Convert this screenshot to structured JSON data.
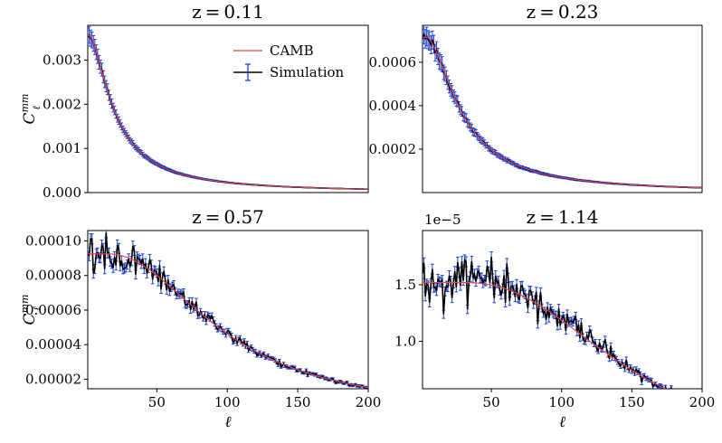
{
  "chart_data": {
    "type": "line",
    "xlabel": "ℓ",
    "ylabel": "Cℓmm",
    "ylabel_main": "C",
    "ylabel_sup": "mm",
    "ylabel_sub": "ℓ",
    "legend": {
      "placement": "upper-right of first panel",
      "entries": [
        {
          "label": "CAMB",
          "color": "#e8464f",
          "style": "line"
        },
        {
          "label": "Simulation",
          "color": "#000000",
          "err_color": "#1f3fd6",
          "style": "errorbar"
        }
      ]
    },
    "colors": {
      "camb": "#e8464f",
      "sim": "#000000",
      "errbar": "#1f3fd6"
    },
    "panels": [
      {
        "title": "z = 0.11",
        "z": 0.11,
        "xlim": [
          1,
          200
        ],
        "ylim": [
          0,
          0.00379
        ],
        "xticks": [],
        "yticks": [
          0,
          0.001,
          0.002,
          0.003
        ],
        "ytick_labels": [
          "0.000",
          "0.001",
          "0.002",
          "0.003"
        ],
        "offset_text": "",
        "camb_model": {
          "A": 0.00356,
          "x0": 2,
          "w": 19,
          "m": 1.05
        },
        "noise_amp": 0.006,
        "err_frac": 0.035,
        "seed": 11
      },
      {
        "title": "z = 0.23",
        "z": 0.23,
        "xlim": [
          1,
          200
        ],
        "ylim": [
          0,
          0.00077
        ],
        "xticks": [],
        "yticks": [
          0.0002,
          0.0004,
          0.0006
        ],
        "ytick_labels": [
          "0.0002",
          "0.0004",
          "0.0006"
        ],
        "offset_text": "",
        "camb_model": {
          "A": 0.000715,
          "x0": 4,
          "w": 26,
          "m": 1.1
        },
        "noise_amp": 0.012,
        "err_frac": 0.04,
        "seed": 23
      },
      {
        "title": "z = 0.57",
        "z": 0.57,
        "xlim": [
          1,
          200
        ],
        "ylim": [
          1.45e-05,
          0.000106
        ],
        "xticks": [
          50,
          100,
          150,
          200
        ],
        "xtick_labels": [
          "50",
          "100",
          "150",
          "200"
        ],
        "yticks": [
          2e-05,
          4e-05,
          6e-05,
          8e-05,
          0.0001
        ],
        "ytick_labels": [
          "0.00002",
          "0.00004",
          "0.00006",
          "0.00008",
          "0.00010"
        ],
        "offset_text": "",
        "camb_model": {
          "A": 9.25e-05,
          "x0": 15,
          "w": 85,
          "m": 1.35
        },
        "noise_amp": 0.045,
        "err_frac": 0.02,
        "seed": 57
      },
      {
        "title": "z = 1.14",
        "z": 1.14,
        "xlim": [
          1,
          200
        ],
        "ylim": [
          0.58,
          1.98
        ],
        "xticks": [
          50,
          100,
          150,
          200
        ],
        "xtick_labels": [
          "50",
          "100",
          "150",
          "200"
        ],
        "yticks": [
          1.0,
          1.5
        ],
        "ytick_labels": [
          "1.0",
          "1.5"
        ],
        "offset_text": "1e−5",
        "camb_model": {
          "A": 1.52,
          "x0": 28,
          "w": 120,
          "m": 1.6
        },
        "noise_amp": 0.07,
        "err_frac": 0.018,
        "seed": 114
      }
    ]
  }
}
